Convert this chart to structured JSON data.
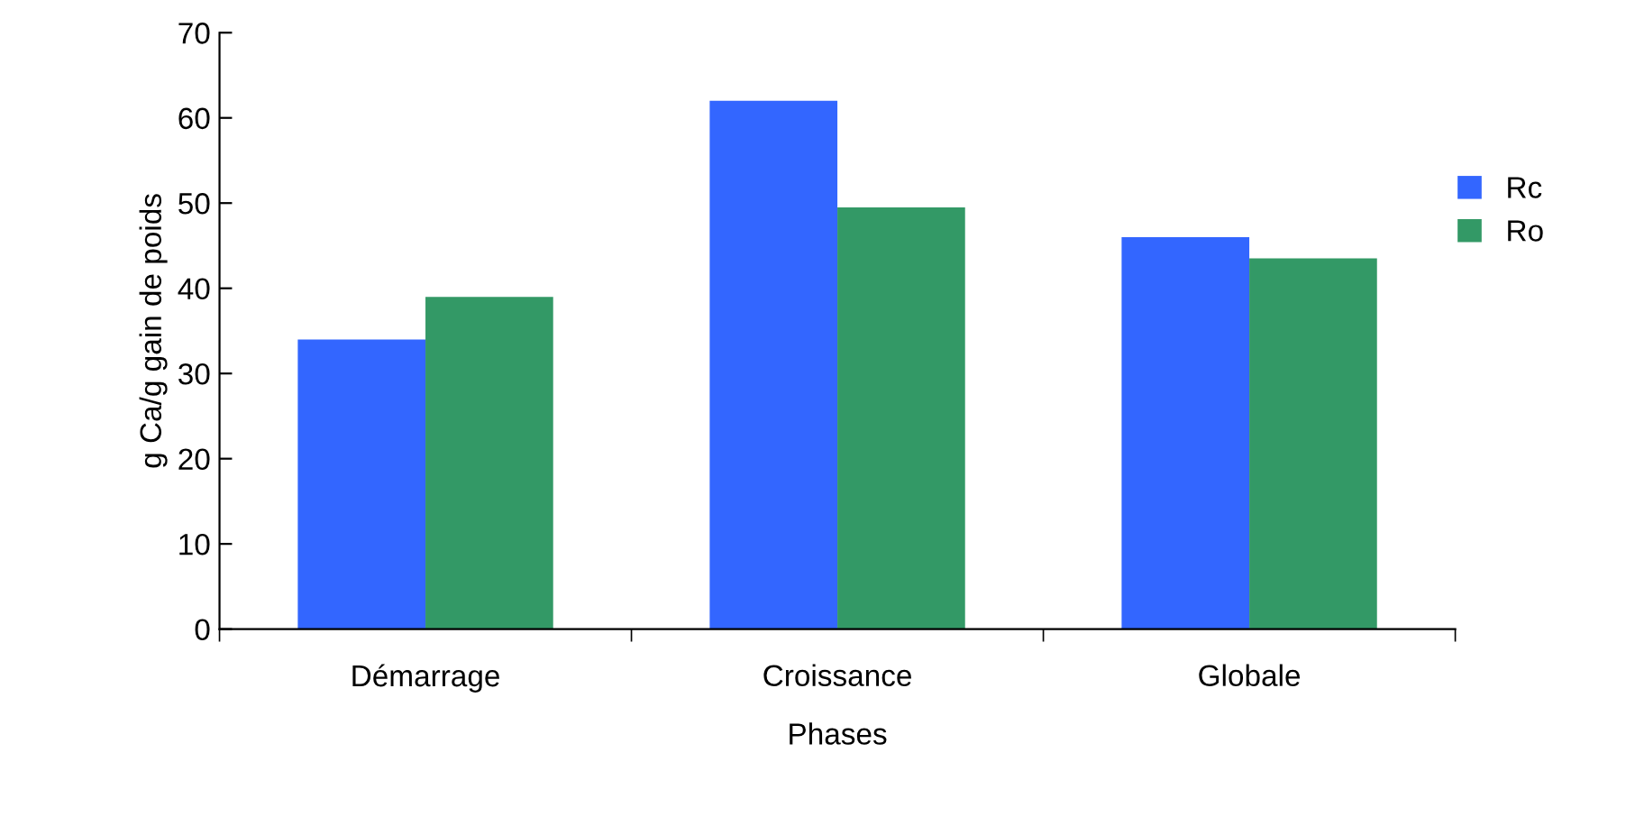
{
  "chart_data": {
    "type": "bar",
    "xlabel": "Phases",
    "ylabel": "g Ca/g gain de poids",
    "categories": [
      "Démarrage",
      "Croissance",
      "Globale"
    ],
    "series": [
      {
        "name": "Rc",
        "color": "#3366ff",
        "values": [
          34,
          62,
          46
        ]
      },
      {
        "name": "Ro",
        "color": "#339966",
        "values": [
          39,
          49.5,
          43.5
        ]
      }
    ],
    "ylim": [
      0,
      70
    ],
    "yticks": [
      0,
      10,
      20,
      30,
      40,
      50,
      60,
      70
    ],
    "grid": false,
    "legend": "right"
  }
}
